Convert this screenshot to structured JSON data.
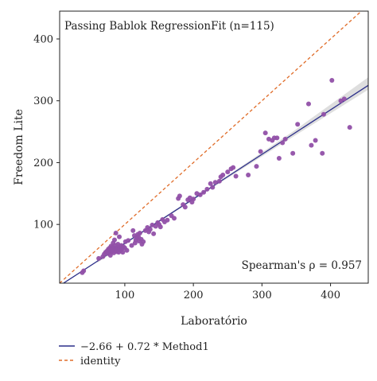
{
  "chart_data": {
    "type": "scatter",
    "title": "Passing Bablok RegressionFit (n=115)",
    "annotation": "Spearman's ρ = 0.957",
    "xlabel": "Laboratório",
    "ylabel": "Freedom Lite",
    "xlim": [
      5,
      455
    ],
    "ylim": [
      5,
      445
    ],
    "x_ticks": [
      100,
      200,
      300,
      400
    ],
    "y_ticks": [
      100,
      200,
      300,
      400
    ],
    "grid": false,
    "legend_position": "bottom-left",
    "colors": {
      "points": "#9150a8",
      "fit_line": "#2c2f8a",
      "identity_line": "#e06d2a",
      "confidence_band": "#d3d3d3",
      "axes": "#222222"
    },
    "series": [
      {
        "name": "−2.66 + 0.72 * Method1",
        "kind": "fit",
        "intercept": -2.66,
        "slope": 0.72,
        "ci_lower": [
          [
            60,
            38
          ],
          [
            150,
            104
          ],
          [
            250,
            175
          ],
          [
            350,
            245
          ],
          [
            455,
            318
          ]
        ],
        "ci_upper": [
          [
            60,
            42
          ],
          [
            150,
            107
          ],
          [
            250,
            179
          ],
          [
            350,
            254
          ],
          [
            455,
            338
          ]
        ]
      },
      {
        "name": "identity",
        "kind": "identity"
      },
      {
        "kind": "points",
        "points": [
          [
            38,
            22
          ],
          [
            40,
            25
          ],
          [
            62,
            45
          ],
          [
            68,
            48
          ],
          [
            70,
            52
          ],
          [
            72,
            55
          ],
          [
            74,
            57
          ],
          [
            75,
            53
          ],
          [
            76,
            60
          ],
          [
            77,
            58
          ],
          [
            78,
            62
          ],
          [
            79,
            50
          ],
          [
            80,
            55
          ],
          [
            80,
            65
          ],
          [
            81,
            60
          ],
          [
            82,
            57
          ],
          [
            82,
            63
          ],
          [
            83,
            70
          ],
          [
            84,
            54
          ],
          [
            84,
            60
          ],
          [
            85,
            62
          ],
          [
            85,
            75
          ],
          [
            86,
            58
          ],
          [
            86,
            66
          ],
          [
            87,
            86
          ],
          [
            88,
            61
          ],
          [
            88,
            56
          ],
          [
            89,
            60
          ],
          [
            90,
            64
          ],
          [
            90,
            68
          ],
          [
            91,
            55
          ],
          [
            92,
            60
          ],
          [
            92,
            80
          ],
          [
            93,
            62
          ],
          [
            94,
            58
          ],
          [
            95,
            66
          ],
          [
            96,
            61
          ],
          [
            97,
            55
          ],
          [
            98,
            64
          ],
          [
            100,
            62
          ],
          [
            101,
            72
          ],
          [
            103,
            58
          ],
          [
            105,
            74
          ],
          [
            110,
            66
          ],
          [
            112,
            90
          ],
          [
            114,
            82
          ],
          [
            115,
            70
          ],
          [
            116,
            75
          ],
          [
            118,
            78
          ],
          [
            119,
            84
          ],
          [
            120,
            80
          ],
          [
            121,
            73
          ],
          [
            122,
            86
          ],
          [
            124,
            76
          ],
          [
            125,
            68
          ],
          [
            127,
            72
          ],
          [
            130,
            90
          ],
          [
            133,
            95
          ],
          [
            135,
            88
          ],
          [
            137,
            92
          ],
          [
            140,
            99
          ],
          [
            142,
            85
          ],
          [
            145,
            97
          ],
          [
            148,
            103
          ],
          [
            150,
            100
          ],
          [
            152,
            96
          ],
          [
            155,
            108
          ],
          [
            158,
            104
          ],
          [
            162,
            107
          ],
          [
            168,
            114
          ],
          [
            172,
            110
          ],
          [
            178,
            142
          ],
          [
            180,
            146
          ],
          [
            185,
            132
          ],
          [
            188,
            128
          ],
          [
            192,
            140
          ],
          [
            195,
            143
          ],
          [
            198,
            136
          ],
          [
            200,
            141
          ],
          [
            205,
            150
          ],
          [
            210,
            148
          ],
          [
            215,
            152
          ],
          [
            220,
            157
          ],
          [
            225,
            166
          ],
          [
            228,
            160
          ],
          [
            232,
            168
          ],
          [
            238,
            170
          ],
          [
            240,
            177
          ],
          [
            243,
            180
          ],
          [
            250,
            185
          ],
          [
            255,
            190
          ],
          [
            258,
            192
          ],
          [
            262,
            178
          ],
          [
            280,
            180
          ],
          [
            292,
            194
          ],
          [
            298,
            218
          ],
          [
            305,
            248
          ],
          [
            310,
            238
          ],
          [
            315,
            236
          ],
          [
            318,
            240
          ],
          [
            322,
            240
          ],
          [
            325,
            207
          ],
          [
            330,
            232
          ],
          [
            334,
            238
          ],
          [
            345,
            215
          ],
          [
            352,
            262
          ],
          [
            368,
            295
          ],
          [
            372,
            228
          ],
          [
            378,
            236
          ],
          [
            388,
            215
          ],
          [
            390,
            278
          ],
          [
            402,
            333
          ],
          [
            415,
            300
          ],
          [
            420,
            303
          ],
          [
            428,
            257
          ]
        ]
      }
    ]
  }
}
